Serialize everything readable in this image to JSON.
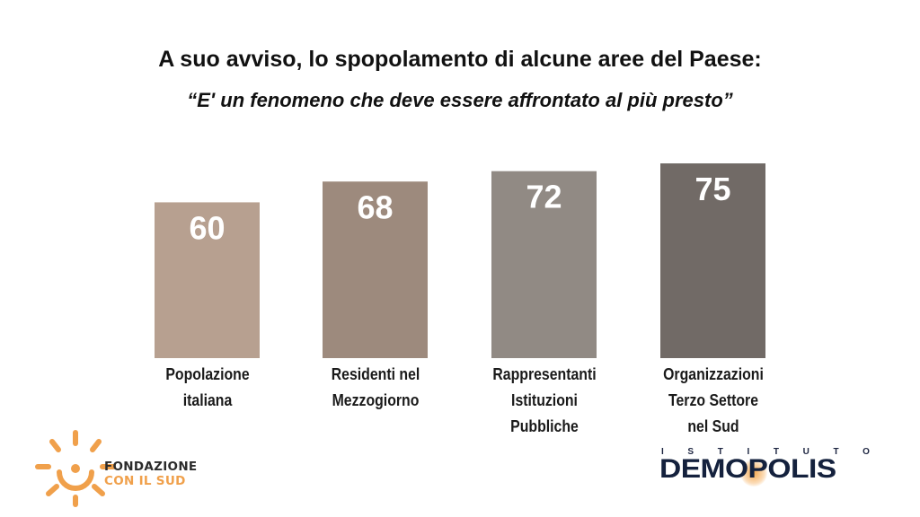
{
  "header": {
    "title": "A suo avviso, lo spopolamento di alcune aree del Paese:",
    "subtitle": "“E' un fenomeno che deve essere affrontato al più presto”"
  },
  "chart_data": {
    "type": "bar",
    "title": "A suo avviso, lo spopolamento di alcune aree del Paese:",
    "subtitle": "“E' un fenomeno che deve essere affrontato al più presto”",
    "categories": [
      [
        "Popolazione",
        "italiana"
      ],
      [
        "Residenti nel",
        "Mezzogiorno"
      ],
      [
        "Rappresentanti",
        "Istituzioni",
        "Pubbliche"
      ],
      [
        "Organizzazioni",
        "Terzo Settore",
        "nel Sud"
      ]
    ],
    "values": [
      60,
      68,
      72,
      75
    ],
    "bar_colors": [
      "#b7a090",
      "#9d8a7d",
      "#918a84",
      "#716a66"
    ],
    "value_label_color": "#ffffff",
    "ylim": [
      0,
      100
    ],
    "grid": false,
    "legend": "none"
  },
  "logos": {
    "fondazione_line1": "FONDAZIONE",
    "fondazione_line2": "CON IL SUD",
    "fondazione_color": "#f0a04b",
    "demopolis_top": [
      "I",
      "S",
      "T",
      "I",
      "T",
      "U",
      "T",
      "O"
    ],
    "demopolis_word": "DEMOPOLIS",
    "demopolis_color": "#14213d"
  }
}
